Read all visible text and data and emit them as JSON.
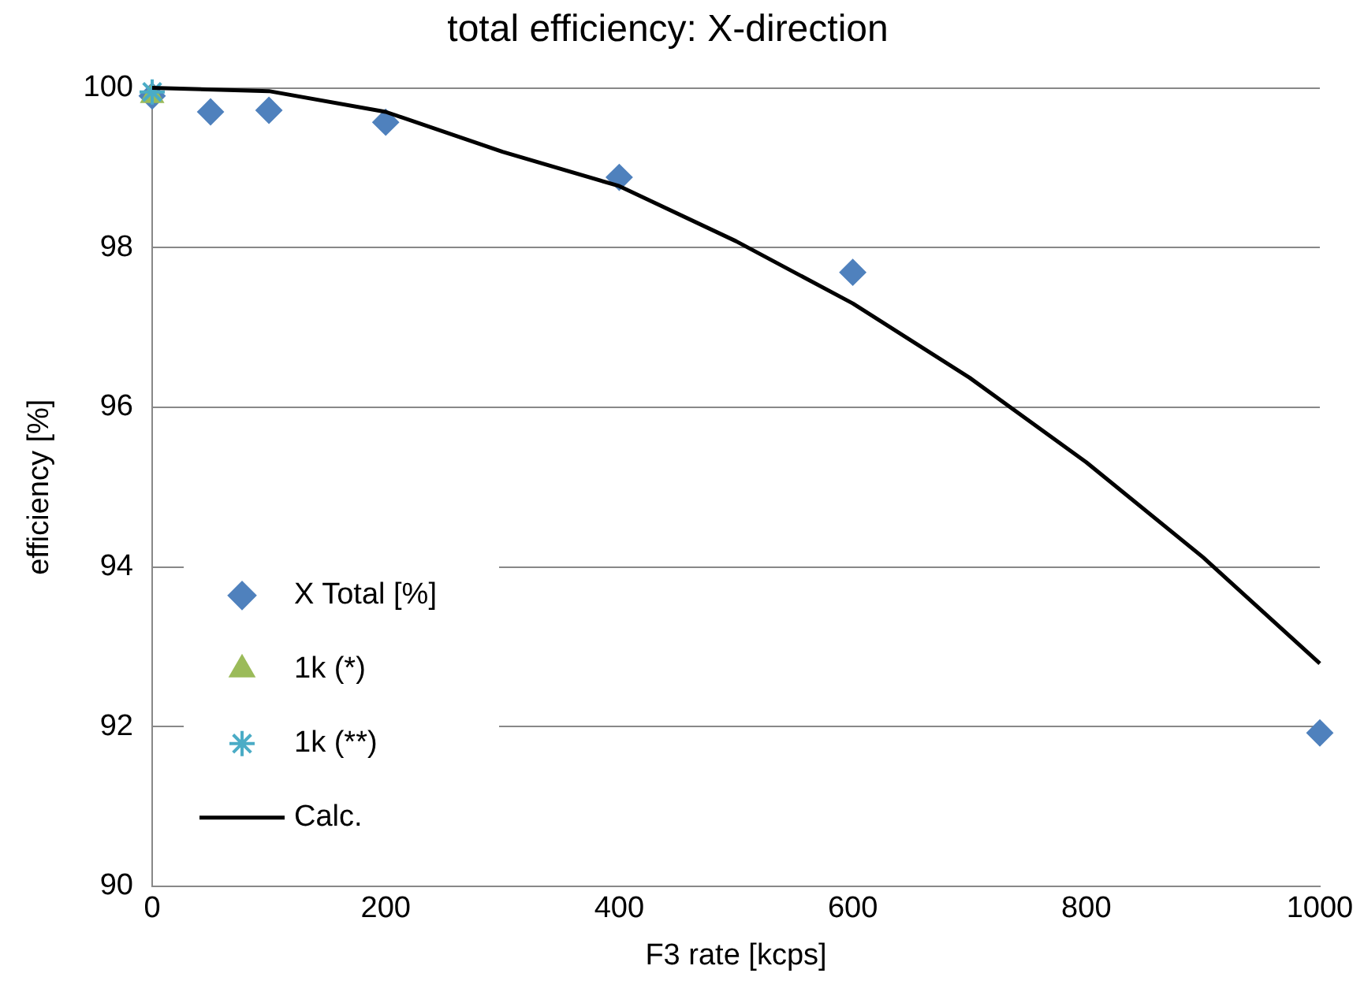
{
  "chart_data": {
    "type": "scatter",
    "title": "total efficiency: X-direction",
    "xlabel": "F3 rate [kcps]",
    "ylabel": "efficiency [%]",
    "xlim": [
      0,
      1000
    ],
    "xticks": [
      0,
      200,
      400,
      600,
      800,
      1000
    ],
    "ylim": [
      90,
      100
    ],
    "yticks": [
      90,
      92,
      94,
      96,
      98,
      100
    ],
    "grid": "y",
    "legend": "bottom left",
    "series": [
      {
        "name": "X Total [%]",
        "type": "scatter",
        "marker": "diamond",
        "color": "#4f81bd",
        "x": [
          0,
          50,
          100,
          200,
          400,
          600,
          1000
        ],
        "values": [
          99.9,
          99.7,
          99.72,
          99.57,
          98.88,
          97.69,
          91.92
        ]
      },
      {
        "name": "1k (*)",
        "type": "scatter",
        "marker": "triangle",
        "color": "#9bbb59",
        "x": [
          0
        ],
        "values": [
          99.9
        ]
      },
      {
        "name": "1k (**)",
        "type": "scatter",
        "marker": "cross",
        "color": "#4bacc6",
        "x": [
          0
        ],
        "values": [
          99.95
        ]
      },
      {
        "name": "Calc.",
        "type": "line",
        "marker": "none",
        "line_style": "solid",
        "color": "#000000",
        "x": [
          0,
          100,
          200,
          300,
          400,
          500,
          600,
          700,
          800,
          900,
          1000
        ],
        "values": [
          100,
          99.96,
          99.7,
          99.2,
          98.77,
          98.08,
          97.3,
          96.37,
          95.31,
          94.12,
          92.79
        ]
      }
    ]
  }
}
